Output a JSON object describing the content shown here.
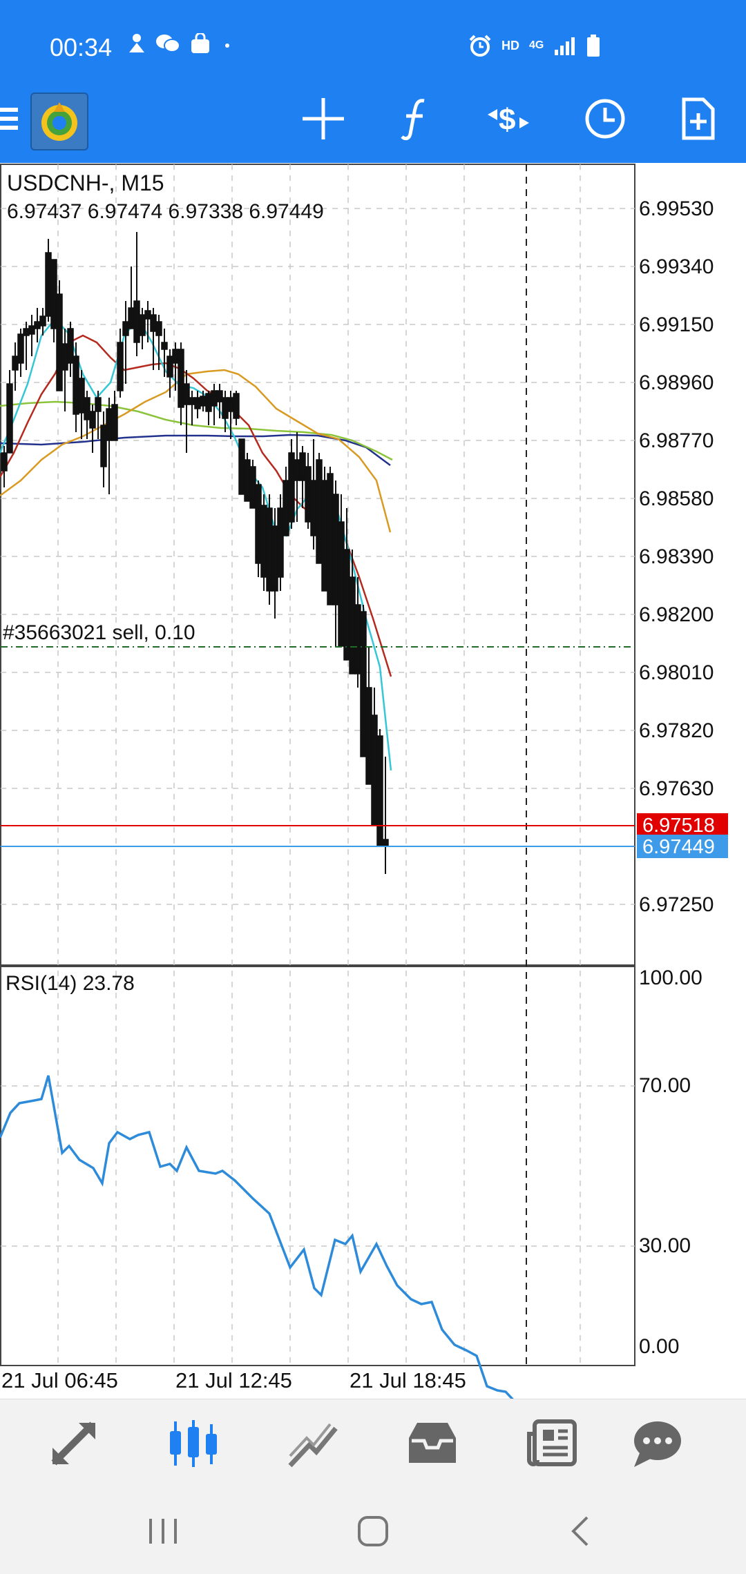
{
  "status_bar": {
    "time": "00:34",
    "network_label": "HD",
    "signal_label": "4G",
    "left_icons": [
      "person-icon",
      "chat-bubbles-icon",
      "bag-icon",
      "dot-icon"
    ],
    "right_icons": [
      "alarm-icon",
      "signal-bars-icon",
      "battery-icon"
    ]
  },
  "toolbar": {
    "icons": [
      "menu-icon",
      "app-logo",
      "crosshair-icon",
      "indicators-icon",
      "new-order-icon",
      "timeframe-icon",
      "objects-icon"
    ]
  },
  "chart": {
    "symbol_label": "USDCNH-, M15",
    "ohlc_label": "6.97437 6.97474 6.97338 6.97449",
    "order_label": "#35663021 sell, 0.10",
    "price_ticks": [
      "6.99530",
      "6.99340",
      "6.99150",
      "6.98960",
      "6.98770",
      "6.98580",
      "6.98390",
      "6.98200",
      "6.98010",
      "6.97820",
      "6.97630",
      "6.97250"
    ],
    "ask_price": "6.97518",
    "bid_price": "6.97449",
    "rsi_label": "RSI(14) 23.78",
    "rsi_ticks": [
      "100.00",
      "70.00",
      "30.00",
      "0.00"
    ],
    "time_labels": [
      "21 Jul 06:45",
      "21 Jul 12:45",
      "21 Jul 18:45"
    ]
  },
  "bottom_nav": {
    "items": [
      "quotes-icon",
      "chart-icon",
      "trade-icon",
      "history-icon",
      "news-icon",
      "chat-icon"
    ],
    "active": "chart-icon"
  },
  "colors": {
    "header_blue": "#1f80f2",
    "ask_red": "#e00000",
    "bid_blue": "#3d9be9",
    "rsi_line": "#2e8bd9",
    "ma_cyan": "#35c7d6",
    "ma_red": "#b42a1e",
    "ma_orange": "#d89a22",
    "ma_green": "#8bc43a",
    "ma_navy": "#22328c"
  }
}
